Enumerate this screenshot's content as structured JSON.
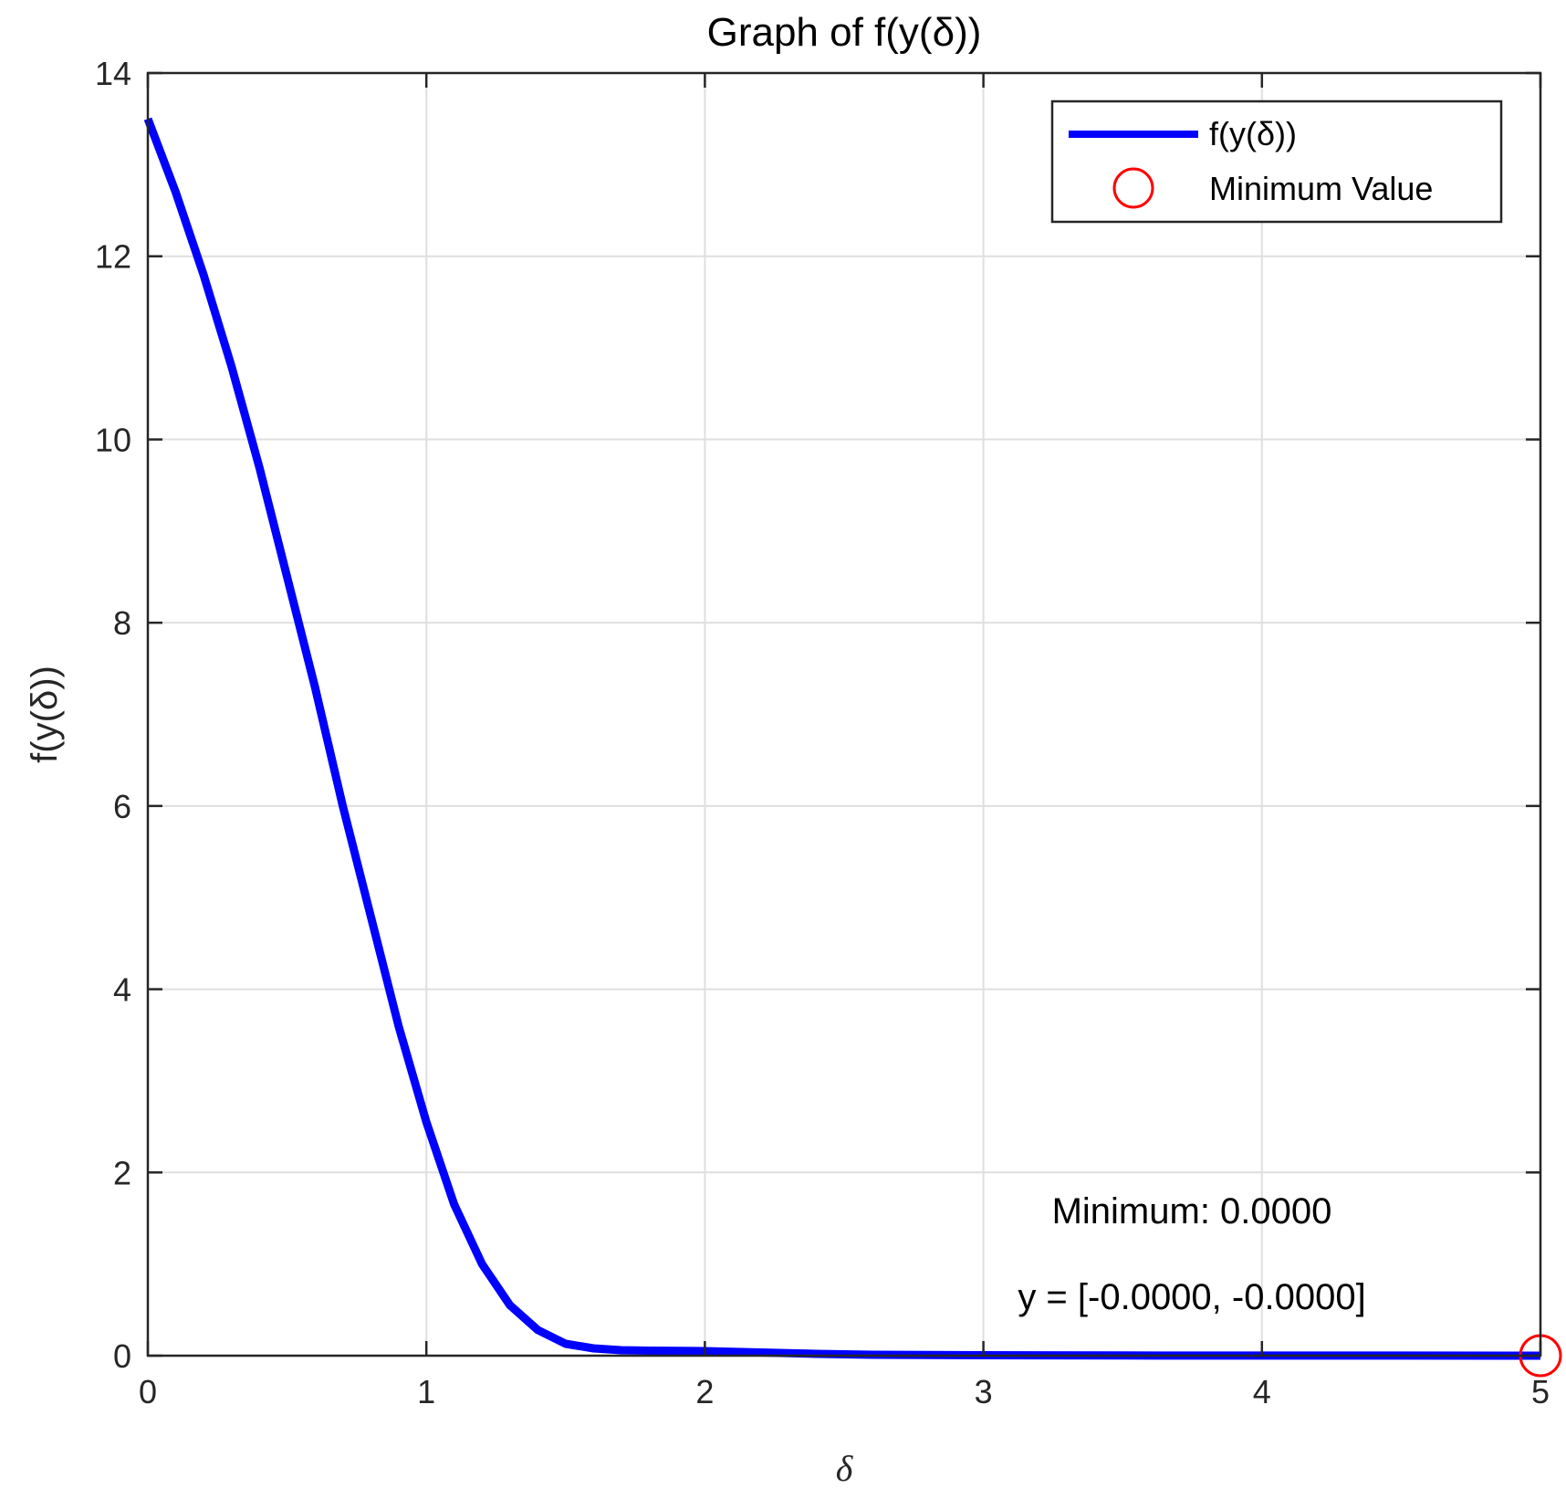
{
  "chart_data": {
    "type": "line",
    "title": "Graph of f(y(δ))",
    "xlabel": "δ",
    "ylabel": "f(y(δ))",
    "xlim": [
      0,
      5
    ],
    "ylim": [
      0,
      14
    ],
    "xticks": [
      "0",
      "1",
      "2",
      "3",
      "4",
      "5"
    ],
    "yticks": [
      "0",
      "2",
      "4",
      "6",
      "8",
      "10",
      "12",
      "14"
    ],
    "grid": true,
    "legend_position": "top-right",
    "series": [
      {
        "name": "f(y(δ))",
        "color": "#0000FF",
        "x": [
          0,
          0.1,
          0.2,
          0.3,
          0.4,
          0.5,
          0.6,
          0.7,
          0.8,
          0.9,
          1.0,
          1.1,
          1.2,
          1.3,
          1.4,
          1.5,
          1.6,
          1.7,
          1.8,
          2.0,
          2.2,
          2.4,
          2.6,
          3.0,
          3.5,
          4.0,
          4.5,
          5.0
        ],
        "y": [
          13.5,
          12.7,
          11.8,
          10.8,
          9.7,
          8.5,
          7.3,
          6.0,
          4.8,
          3.6,
          2.55,
          1.65,
          1.0,
          0.55,
          0.28,
          0.13,
          0.08,
          0.06,
          0.055,
          0.05,
          0.035,
          0.02,
          0.01,
          0.005,
          0.002,
          0.001,
          0.0005,
          0
        ]
      }
    ],
    "markers": [
      {
        "name": "Minimum Value",
        "color": "#FF0000",
        "shape": "circle",
        "x": 5,
        "y": 0
      }
    ],
    "annotations": [
      "Minimum: 0.0000",
      "y = [-0.0000, -0.0000]"
    ]
  }
}
